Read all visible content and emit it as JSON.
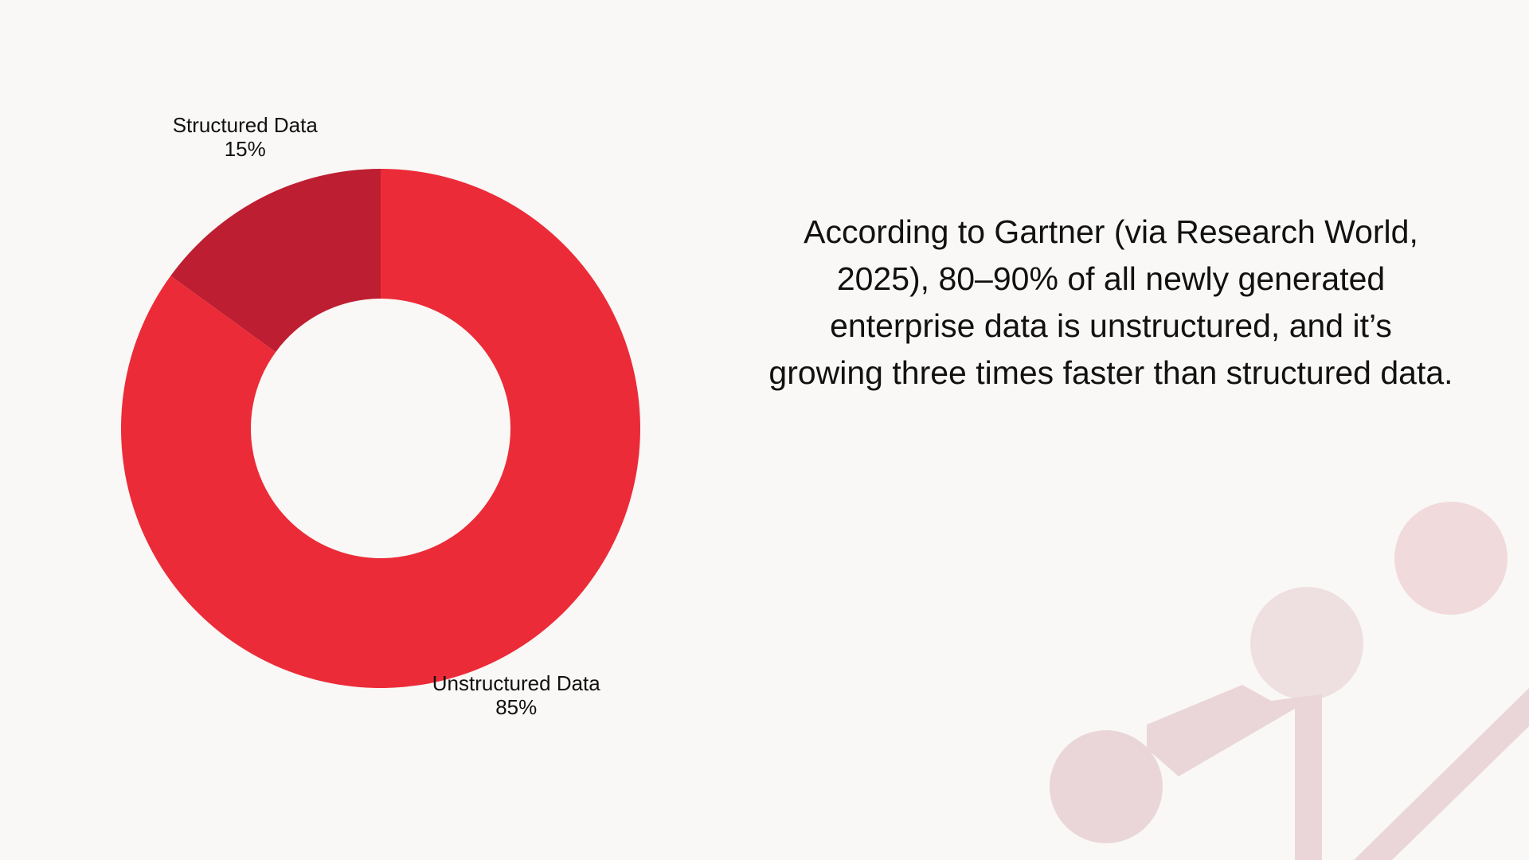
{
  "chart_data": {
    "type": "pie",
    "donut": true,
    "categories": [
      "Structured Data",
      "Unstructured Data"
    ],
    "values": [
      15,
      85
    ],
    "value_labels": [
      "15%",
      "85%"
    ],
    "colors": [
      "#be1e31",
      "#ec2b38"
    ],
    "title": "",
    "legend": "none"
  },
  "quote": {
    "text": "According to Gartner (via Research World, 2025), 80–90% of all newly generated enterprise data is unstructured, and it’s growing three times faster than structured data."
  },
  "decoration": {
    "icon": "network-nodes-icon",
    "color": "#f1d9da"
  }
}
